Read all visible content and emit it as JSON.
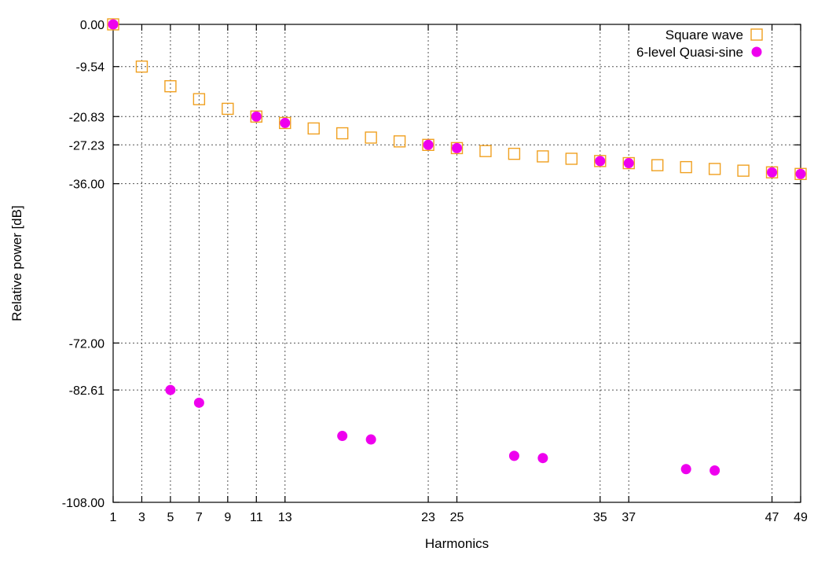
{
  "chart_data": {
    "type": "scatter",
    "xlabel": "Harmonics",
    "ylabel": "Relative power [dB]",
    "xlim": [
      1,
      49
    ],
    "ylim": [
      -108,
      0
    ],
    "x_ticks": [
      1,
      3,
      5,
      7,
      9,
      11,
      13,
      23,
      25,
      35,
      37,
      47,
      49
    ],
    "y_ticks": [
      "0.00",
      "-9.54",
      "-20.83",
      "-27.23",
      "-36.00",
      "-72.00",
      "-82.61",
      "-108.00"
    ],
    "grid": true,
    "legend_position": "top-right",
    "series": [
      {
        "name": "Square wave",
        "marker": "open-square",
        "color": "#f0a020",
        "x": [
          1,
          3,
          5,
          7,
          9,
          11,
          13,
          15,
          17,
          19,
          21,
          23,
          25,
          27,
          29,
          31,
          33,
          35,
          37,
          39,
          41,
          43,
          45,
          47,
          49
        ],
        "y": [
          0.0,
          -9.54,
          -13.98,
          -16.9,
          -19.08,
          -20.83,
          -22.28,
          -23.52,
          -24.61,
          -25.58,
          -26.44,
          -27.23,
          -27.96,
          -28.63,
          -29.25,
          -29.83,
          -30.37,
          -30.88,
          -31.36,
          -31.82,
          -32.26,
          -32.67,
          -33.06,
          -33.44,
          -33.8
        ]
      },
      {
        "name": "6-level Quasi-sine",
        "marker": "filled-circle",
        "color": "#ee00ee",
        "x": [
          1,
          5,
          7,
          11,
          13,
          17,
          19,
          23,
          25,
          29,
          31,
          35,
          37,
          41,
          43,
          47,
          49
        ],
        "y": [
          0.0,
          -82.61,
          -85.5,
          -20.83,
          -22.28,
          -93.0,
          -93.8,
          -27.23,
          -27.96,
          -97.5,
          -98.0,
          -30.88,
          -31.36,
          -100.5,
          -100.8,
          -33.44,
          -33.8
        ]
      }
    ]
  }
}
